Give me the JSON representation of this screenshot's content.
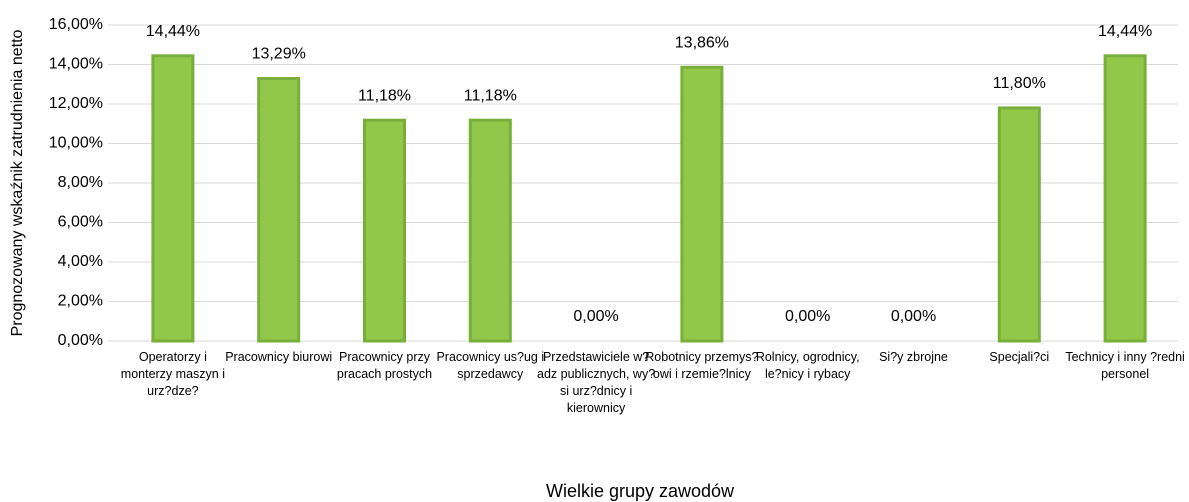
{
  "chart_data": {
    "type": "bar",
    "categories": [
      "Operatorzy i monterzy maszyn i urz?dze?",
      "Pracownicy biurowi",
      "Pracownicy przy pracach prostych",
      "Pracownicy us?ug i sprzedawcy",
      "Przedstawiciele w?adz publicznych, wy?si urz?dnicy i kierownicy",
      "Robotnicy przemys?owi i rzemie?lnicy",
      "Rolnicy, ogrodnicy, le?nicy i rybacy",
      "Si?y zbrojne",
      "Specjali?ci",
      "Technicy i inny ?redni personel"
    ],
    "values": [
      14.44,
      13.29,
      11.18,
      11.18,
      0,
      13.86,
      0,
      0,
      11.8,
      14.44
    ],
    "value_labels": [
      "14,44%",
      "13,29%",
      "11,18%",
      "11,18%",
      "0,00%",
      "13,86%",
      "0,00%",
      "0,00%",
      "11,80%",
      "14,44%"
    ],
    "color": "#92c84a",
    "ylim": [
      0,
      16
    ],
    "yticks": [
      {
        "value": 0,
        "label": "0,00%"
      },
      {
        "value": 2,
        "label": "2,00%"
      },
      {
        "value": 4,
        "label": "4,00%"
      },
      {
        "value": 6,
        "label": "6,00%"
      },
      {
        "value": 8,
        "label": "8,00%"
      },
      {
        "value": 10,
        "label": "10,00%"
      },
      {
        "value": 12,
        "label": "12,00%"
      },
      {
        "value": 14,
        "label": "14,00%"
      },
      {
        "value": 16,
        "label": "16,00%"
      }
    ],
    "grid": true,
    "xlabel": "Wielkie grupy zawodów",
    "ylabel": "Prognozowany wskaźnik zatrudnienia netto"
  }
}
